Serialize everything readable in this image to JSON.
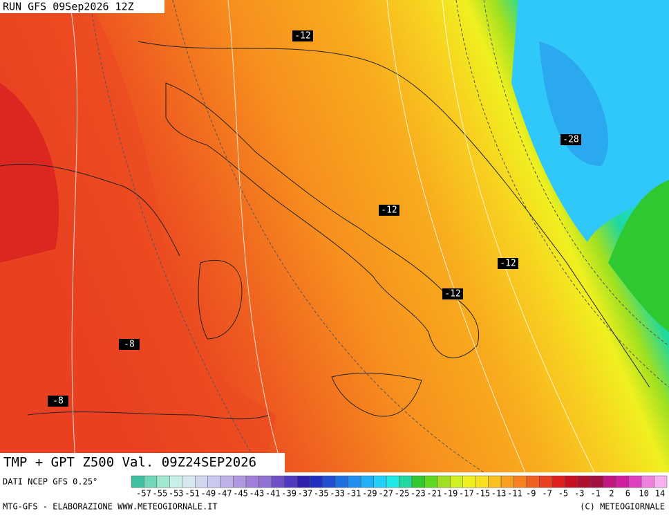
{
  "header": {
    "run": "RUN GFS 09Sep2026 12Z"
  },
  "contour_labels": [
    -12,
    -12,
    -12,
    -12,
    -28,
    -8,
    -8
  ],
  "title": "TMP + GPT Z500 Val. 09Z24SEP2026",
  "source": "DATI NCEP GFS 0.25°",
  "colorbar": {
    "labels": [
      -57,
      -55,
      -53,
      -51,
      -49,
      -47,
      -45,
      -43,
      -41,
      -39,
      -37,
      -35,
      -33,
      -31,
      -29,
      -27,
      -25,
      -23,
      -21,
      -19,
      -17,
      -15,
      -13,
      -11,
      -9,
      -7,
      -5,
      -3,
      -1,
      2,
      6,
      10,
      14
    ],
    "colors": [
      "#40c0a0",
      "#70d8b8",
      "#a0e8d0",
      "#c8f0e8",
      "#d8e8f0",
      "#d0d8f0",
      "#c8c8f0",
      "#c0b0e8",
      "#b098e0",
      "#a080d8",
      "#9070d0",
      "#7050c8",
      "#5038c0",
      "#3020b0",
      "#2030c0",
      "#2050d0",
      "#2070e0",
      "#2090f0",
      "#20b0f8",
      "#20d0f8",
      "#20e8e8",
      "#20d8a0",
      "#30c830",
      "#60d820",
      "#a0e020",
      "#d0f020",
      "#f0f020",
      "#f8e020",
      "#f8c020",
      "#f8a020",
      "#f88020",
      "#f06020",
      "#e84020",
      "#e02020",
      "#c81020",
      "#b01030",
      "#a01040",
      "#c01880",
      "#d020a0",
      "#e040c0",
      "#f080e0",
      "#f8b0f0"
    ]
  },
  "footer": {
    "left": "MTG-GFS - ELABORAZIONE WWW.METEOGIORNALE.IT",
    "right": "(C) METEOGIORNALE"
  }
}
